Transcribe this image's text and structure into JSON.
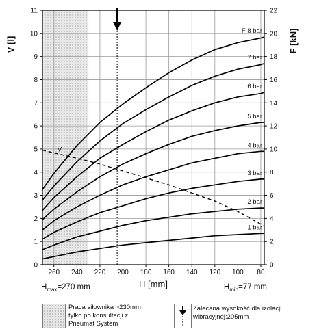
{
  "chart_data": {
    "type": "line",
    "xlabel": "H [mm]",
    "ylabel_left": "V [l]",
    "ylabel_right": "F [kN]",
    "x_range": [
      270,
      77
    ],
    "x_ticks": [
      260,
      240,
      220,
      200,
      180,
      160,
      140,
      120,
      100,
      80
    ],
    "y_left_range": [
      0,
      11
    ],
    "y_left_ticks": [
      0,
      1,
      2,
      3,
      4,
      5,
      6,
      7,
      8,
      9,
      10,
      11
    ],
    "y_right_range": [
      0,
      22
    ],
    "y_right_ticks": [
      0,
      2,
      4,
      6,
      8,
      10,
      12,
      14,
      16,
      18,
      20,
      22
    ],
    "grid": true,
    "hmax_label": {
      "prefix": "H",
      "sub": "max",
      "suffix": "=270 mm"
    },
    "hmin_label": {
      "prefix": "H",
      "sub": "min",
      "suffix": "=77 mm"
    },
    "x": [
      270,
      260,
      240,
      220,
      200,
      180,
      160,
      140,
      120,
      100,
      80,
      77
    ],
    "force_series": [
      {
        "name": "F 8 bar",
        "label": "F 8 bar",
        "axis": "right",
        "values": [
          6.5,
          7.9,
          10.3,
          12.3,
          13.9,
          15.3,
          16.6,
          17.7,
          18.6,
          19.2,
          19.6,
          19.7
        ]
      },
      {
        "name": "7 bar",
        "label": "7 bar",
        "axis": "right",
        "values": [
          5.6,
          6.8,
          8.9,
          10.7,
          12.2,
          13.4,
          14.5,
          15.5,
          16.3,
          16.9,
          17.3,
          17.4
        ]
      },
      {
        "name": "6 bar",
        "label": "6 bar",
        "axis": "right",
        "values": [
          4.7,
          5.8,
          7.6,
          9.2,
          10.4,
          11.5,
          12.5,
          13.3,
          14.0,
          14.5,
          14.8,
          14.9
        ]
      },
      {
        "name": "5 bar",
        "label": "5 bar",
        "axis": "right",
        "values": [
          3.9,
          4.8,
          6.3,
          7.6,
          8.7,
          9.6,
          10.4,
          11.1,
          11.6,
          12.0,
          12.3,
          12.3
        ]
      },
      {
        "name": "4 bar",
        "label": "4 bar",
        "axis": "right",
        "values": [
          3.0,
          3.8,
          5.0,
          6.0,
          6.9,
          7.6,
          8.2,
          8.8,
          9.2,
          9.6,
          9.8,
          9.8
        ]
      },
      {
        "name": "3 bar",
        "label": "3 bar",
        "axis": "right",
        "values": [
          2.2,
          2.8,
          3.7,
          4.5,
          5.1,
          5.7,
          6.2,
          6.6,
          6.9,
          7.2,
          7.4,
          7.4
        ]
      },
      {
        "name": "2 bar",
        "label": "2 bar",
        "axis": "right",
        "values": [
          1.3,
          1.7,
          2.4,
          2.9,
          3.4,
          3.8,
          4.1,
          4.4,
          4.6,
          4.8,
          4.9,
          4.9
        ]
      },
      {
        "name": "1 bar",
        "label": "1 bar",
        "axis": "right",
        "values": [
          0.5,
          0.7,
          1.1,
          1.4,
          1.7,
          1.9,
          2.1,
          2.3,
          2.5,
          2.6,
          2.7,
          2.7
        ]
      }
    ],
    "volume_series": {
      "name": "V",
      "label": "V",
      "axis": "left",
      "style": "dashed",
      "x": [
        270,
        240,
        220,
        200,
        180,
        160,
        140,
        120,
        100,
        80,
        77
      ],
      "values": [
        4.95,
        4.6,
        4.35,
        4.05,
        3.75,
        3.45,
        3.1,
        2.75,
        2.3,
        1.75,
        1.65
      ]
    },
    "not_recommended_region": {
      "x_from": 270,
      "x_to": 230
    },
    "recommended_height": 205
  },
  "legend": {
    "region_text_lines": [
      "Praca siłownika >230mm",
      "tylko po konsultacji z",
      "Pneumat System"
    ],
    "arrow_text_lines": [
      "Zalecana wysokość dla izolacji",
      "wibracyjnej:205mm"
    ]
  }
}
